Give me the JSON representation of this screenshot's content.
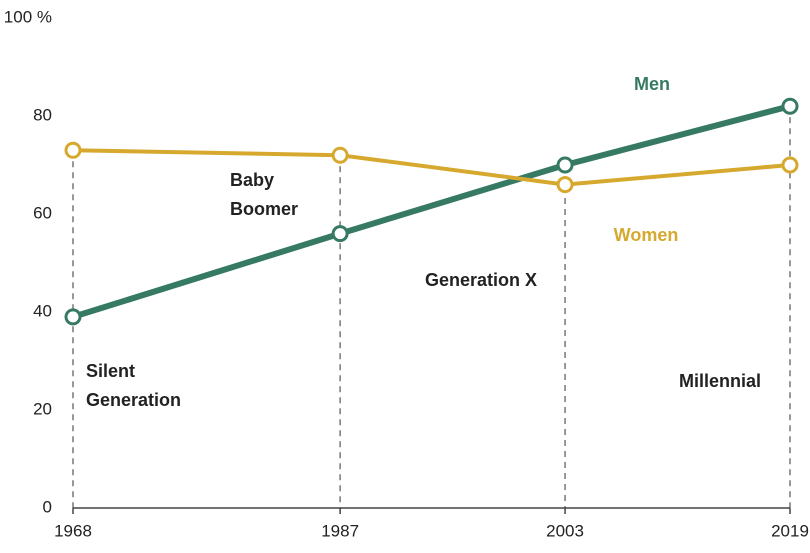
{
  "chart_data": {
    "type": "line",
    "x": [
      1968,
      1987,
      2003,
      2019
    ],
    "xlim": [
      1968,
      2019
    ],
    "xticks": [
      1968,
      1987,
      2003,
      2019
    ],
    "ylim": [
      0,
      100
    ],
    "yticks": [
      0,
      20,
      40,
      60,
      80,
      {
        "value": 100,
        "label": "100 %"
      }
    ],
    "series": [
      {
        "name": "Men",
        "color": "#367a63",
        "values": [
          39,
          56,
          70,
          82
        ]
      },
      {
        "name": "Women",
        "color": "#d6a92e",
        "values": [
          73,
          72,
          66,
          70
        ]
      }
    ],
    "annotations": [
      {
        "lines": [
          "Silent",
          "Generation"
        ]
      },
      {
        "lines": [
          "Baby",
          "Boomer"
        ]
      },
      {
        "lines": [
          "Generation X"
        ]
      },
      {
        "lines": [
          "Millennial"
        ]
      }
    ]
  }
}
